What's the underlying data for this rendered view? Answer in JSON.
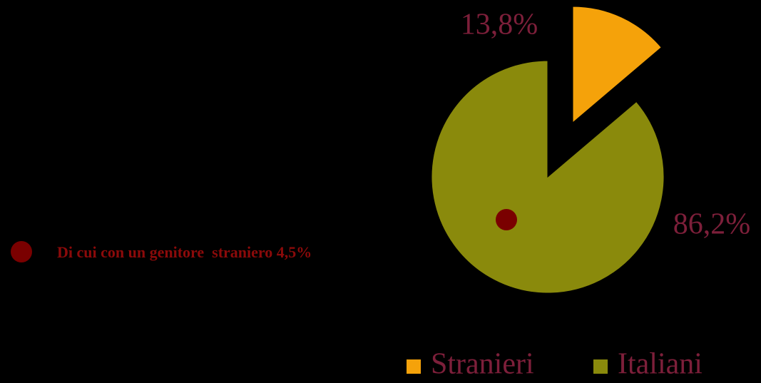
{
  "chart_data": {
    "type": "pie",
    "categories": [
      "Stranieri",
      "Italiani"
    ],
    "values": [
      13.8,
      86.2
    ],
    "value_labels": [
      "13,8%",
      "86,2%"
    ],
    "colors": [
      "#f5a20a",
      "#8a8a0c"
    ],
    "annotation": "Di cui con un genitore  straniero 4,5%",
    "legend": "bottom"
  }
}
